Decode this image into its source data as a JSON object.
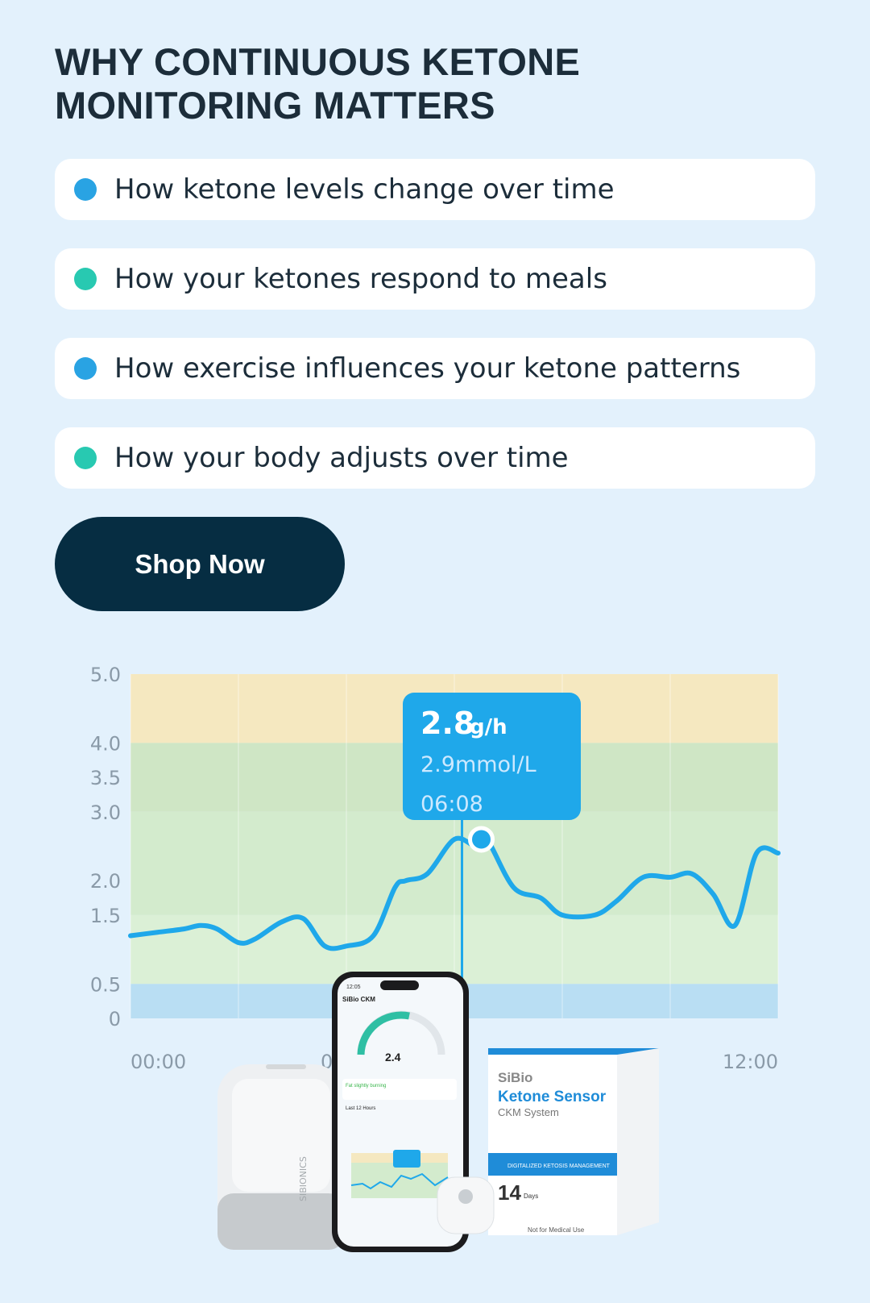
{
  "heading": "WHY CONTINUOUS KETONE MONITORING MATTERS",
  "colors": {
    "blue_dot": "#29a3e3",
    "teal_dot": "#28c9b1",
    "button": "#062d42",
    "line": "#1fa8ea"
  },
  "bullets": [
    {
      "text": "How ketone levels change over time",
      "dot_color": "#29a3e3"
    },
    {
      "text": "How your ketones respond to meals",
      "dot_color": "#28c9b1"
    },
    {
      "text": "How exercise influences your ketone patterns",
      "dot_color": "#29a3e3"
    },
    {
      "text": "How your body adjusts over time",
      "dot_color": "#28c9b1"
    }
  ],
  "cta": {
    "label": "Shop Now"
  },
  "chart_data": {
    "type": "line",
    "title": "",
    "xlabel": "",
    "ylabel": "",
    "y_ticks": [
      "5.0",
      "4.0",
      "3.5",
      "3.0",
      "2.0",
      "1.5",
      "0.5",
      "0"
    ],
    "x_ticks": [
      "00:00",
      "0",
      "12:00"
    ],
    "ylim": [
      0,
      5.0
    ],
    "xlim": [
      0,
      12
    ],
    "bands": [
      {
        "from": 4.0,
        "to": 5.0,
        "color": "#f5e8c0"
      },
      {
        "from": 3.0,
        "to": 4.0,
        "color": "#cfe6c5"
      },
      {
        "from": 1.5,
        "to": 3.0,
        "color": "#d3ebcd"
      },
      {
        "from": 0.5,
        "to": 1.5,
        "color": "#dbf0d6"
      },
      {
        "from": 0,
        "to": 0.5,
        "color": "#b9def3"
      }
    ],
    "series": [
      {
        "x": [
          0,
          0.5,
          1.0,
          1.3,
          1.6,
          2.0,
          2.3,
          2.8,
          3.2,
          3.6,
          4.0,
          4.5,
          4.9,
          5.1,
          5.5,
          6.0,
          6.4,
          6.6,
          7.1,
          7.6,
          8.0,
          8.6,
          9.0,
          9.5,
          10.0,
          10.4,
          10.8,
          11.2,
          11.6,
          12.0
        ],
        "values": [
          1.2,
          1.25,
          1.3,
          1.35,
          1.3,
          1.1,
          1.15,
          1.4,
          1.45,
          1.05,
          1.05,
          1.2,
          1.9,
          2.0,
          2.1,
          2.6,
          2.5,
          2.6,
          1.9,
          1.75,
          1.5,
          1.5,
          1.7,
          2.05,
          2.05,
          2.1,
          1.8,
          1.35,
          2.4,
          2.4
        ]
      }
    ],
    "highlight": {
      "x": 6.5,
      "value": "2.8",
      "unit": "g/h",
      "mmol": "2.9mmol/L",
      "time": "06:08"
    }
  },
  "products": {
    "phone_time": "12:05",
    "phone_app": "SiBio CKM",
    "phone_reading": "2.4",
    "phone_status": "Fat slightly burning",
    "phone_range": "Last 12 Hours",
    "box_brand": "SiBio",
    "box_title": "Ketone Sensor",
    "box_subtitle": "CKM System",
    "box_band": "DIGITALIZED KETOSIS MANAGEMENT",
    "box_days": "14",
    "box_days_unit": "Days",
    "box_footer": "Not for Medical Use",
    "reader_brand": "SIBIONICS"
  }
}
